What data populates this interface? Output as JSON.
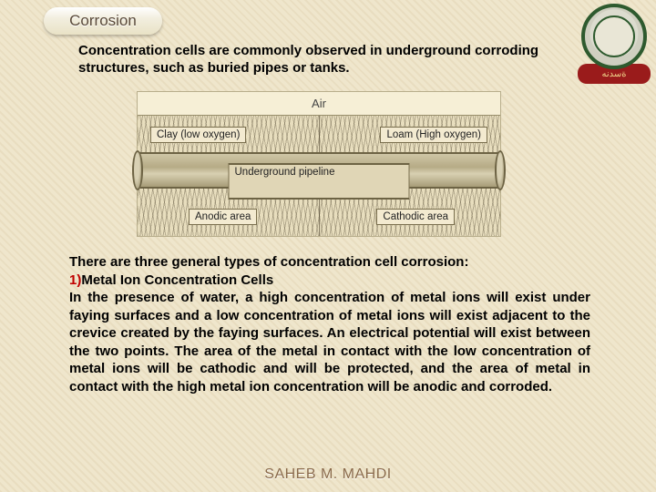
{
  "header": {
    "title": "Corrosion",
    "logo_band": "ةسدنه"
  },
  "intro_text": "Concentration cells are commonly observed in underground corroding structures, such as buried pipes or tanks.",
  "diagram": {
    "air_label": "Air",
    "clay_label": "Clay (low oxygen)",
    "loam_label": "Loam (High oxygen)",
    "pipe_label": "Underground pipeline",
    "anodic_label": "Anodic area",
    "cathodic_label": "Cathodic area"
  },
  "content": {
    "intro_line": "There are three general types of concentration cell corrosion:",
    "subhead_num": "1)",
    "subhead_text": "Metal Ion Concentration Cells",
    "body_text": "In the presence of water, a high concentration of metal ions will exist under faying surfaces and a low concentration of metal ions will exist adjacent to the crevice created by the faying surfaces. An electrical potential will exist between the two points. The area of the metal in contact with the low concentration of metal ions will be cathodic and will be protected, and the area of metal in contact with the high metal ion concentration will be anodic and corroded."
  },
  "footer": {
    "author": "SAHEB M. MAHDI"
  },
  "colors": {
    "page_bg": "#efe6cc",
    "accent_red": "#c00000",
    "logo_green": "#2e5a2e",
    "logo_red": "#9a1b1b",
    "footer_text": "#8a6a4a"
  }
}
